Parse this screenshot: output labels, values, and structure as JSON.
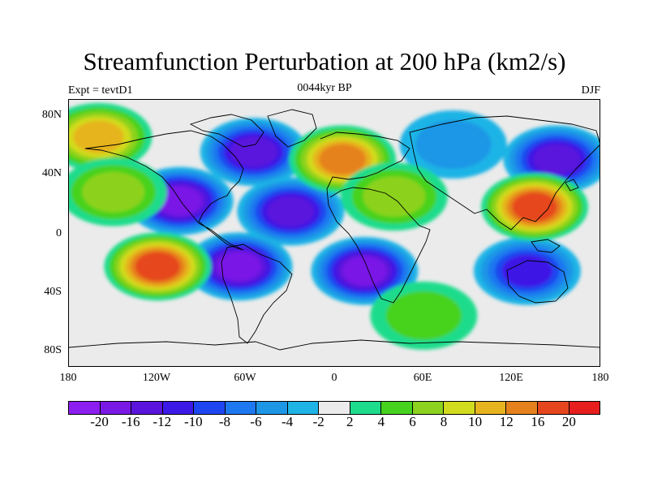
{
  "title": "Streamfunction Perturbation at 200 hPa (km2/s)",
  "left_label": "Expt = tevtD1",
  "center_label": "0044kyr BP",
  "right_label": "DJF",
  "lat_ticks": [
    "80N",
    "40N",
    "0",
    "40S",
    "80S"
  ],
  "lon_ticks": [
    "180",
    "120W",
    "60W",
    "0",
    "60E",
    "120E",
    "180"
  ],
  "colorbar": {
    "colors": [
      "#8c1ef0",
      "#7a19e6",
      "#5a14dc",
      "#3c19e6",
      "#1e46f0",
      "#1e78f0",
      "#1e96e6",
      "#1eb4e6",
      "#ebebeb",
      "#1edc8c",
      "#46d21e",
      "#8cd21e",
      "#d2dc1e",
      "#e6b41e",
      "#e6821e",
      "#e6461e",
      "#e61e1e"
    ],
    "labels": [
      "-20",
      "-16",
      "-12",
      "-10",
      "-8",
      "-6",
      "-4",
      "-2",
      "2",
      "4",
      "6",
      "8",
      "10",
      "12",
      "16",
      "20"
    ]
  },
  "chart_data": {
    "type": "heatmap",
    "title": "Streamfunction Perturbation at 200 hPa (km2/s)",
    "experiment": "Expt = tevtD1",
    "period": "0044kyr BP",
    "season": "DJF",
    "x_range": [
      -180,
      180
    ],
    "y_range": [
      -90,
      90
    ],
    "contour_levels": [
      -20,
      -16,
      -12,
      -10,
      -8,
      -6,
      -4,
      -2,
      2,
      4,
      6,
      8,
      10,
      12,
      16,
      20
    ],
    "features": [
      {
        "lon": -55,
        "lat": 55,
        "value": -14
      },
      {
        "lon": -105,
        "lat": 22,
        "value": -16
      },
      {
        "lon": -30,
        "lat": 15,
        "value": -14
      },
      {
        "lon": -65,
        "lat": -22,
        "value": -16
      },
      {
        "lon": 20,
        "lat": -25,
        "value": -16
      },
      {
        "lon": 130,
        "lat": -25,
        "value": -10
      },
      {
        "lon": 150,
        "lat": 50,
        "value": -12
      },
      {
        "lon": 80,
        "lat": 60,
        "value": -4
      },
      {
        "lon": -120,
        "lat": -22,
        "value": 16
      },
      {
        "lon": 5,
        "lat": 50,
        "value": 12
      },
      {
        "lon": 135,
        "lat": 18,
        "value": 18
      },
      {
        "lon": -160,
        "lat": 65,
        "value": 10
      },
      {
        "lon": -150,
        "lat": 28,
        "value": 6
      },
      {
        "lon": 40,
        "lat": 25,
        "value": 6
      },
      {
        "lon": 60,
        "lat": -55,
        "value": 4
      }
    ]
  }
}
